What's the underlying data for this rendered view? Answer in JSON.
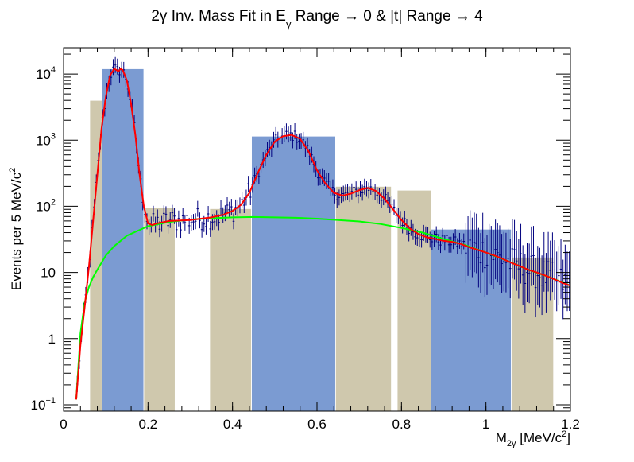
{
  "chart_data": {
    "type": "bar",
    "title_main": "2γ Inv. Mass Fit in E",
    "title_sub": "γ",
    "title_rest": " Range → 0 & |t| Range → 4",
    "ylabel": "Events per 5 MeV/c",
    "ylabel_sup": "2",
    "xlabel_main": "M",
    "xlabel_sub": "2γ",
    "xlabel_unit": " [MeV/c",
    "xlabel_sup": "2",
    "xlabel_close": "]",
    "xlim": [
      0,
      1.2
    ],
    "ylim": [
      0.08,
      25000
    ],
    "log_y": true,
    "x_ticks": [
      {
        "v": 0,
        "label": "0"
      },
      {
        "v": 0.2,
        "label": "0.2"
      },
      {
        "v": 0.4,
        "label": "0.4"
      },
      {
        "v": 0.6,
        "label": "0.6"
      },
      {
        "v": 0.8,
        "label": "0.8"
      },
      {
        "v": 1.0,
        "label": "1"
      },
      {
        "v": 1.2,
        "label": "1.2"
      }
    ],
    "y_ticks": [
      {
        "v": 0.1,
        "base": "10",
        "exp": "−1"
      },
      {
        "v": 1,
        "base": "1",
        "exp": ""
      },
      {
        "v": 10,
        "base": "10",
        "exp": ""
      },
      {
        "v": 100,
        "base": "10",
        "exp": "2"
      },
      {
        "v": 1000,
        "base": "10",
        "exp": "3"
      },
      {
        "v": 10000,
        "base": "10",
        "exp": "4"
      }
    ],
    "colors": {
      "signal_bar": "#7b9bd2",
      "sideband_bar": "#cfc8ad",
      "total_fit": "#ff0000",
      "background_fit": "#00ff00",
      "data_points": "#00007f"
    },
    "regions": [
      {
        "x0": 0.062,
        "x1": 0.091,
        "y": 4000,
        "kind": "sideband"
      },
      {
        "x0": 0.091,
        "x1": 0.19,
        "y": 12000,
        "kind": "signal"
      },
      {
        "x0": 0.19,
        "x1": 0.264,
        "y": 95,
        "kind": "sideband"
      },
      {
        "x0": 0.346,
        "x1": 0.445,
        "y": 92,
        "kind": "sideband"
      },
      {
        "x0": 0.445,
        "x1": 0.644,
        "y": 1150,
        "kind": "signal"
      },
      {
        "x0": 0.644,
        "x1": 0.776,
        "y": 200,
        "kind": "sideband"
      },
      {
        "x0": 0.79,
        "x1": 0.87,
        "y": 175,
        "kind": "sideband"
      },
      {
        "x0": 0.87,
        "x1": 1.06,
        "y": 45,
        "kind": "signal"
      },
      {
        "x0": 1.06,
        "x1": 1.16,
        "y": 17,
        "kind": "sideband"
      }
    ],
    "series": [
      {
        "role": "total_fit",
        "x": [
          0.03,
          0.04,
          0.05,
          0.06,
          0.07,
          0.08,
          0.09,
          0.1,
          0.11,
          0.12,
          0.13,
          0.135,
          0.14,
          0.15,
          0.16,
          0.17,
          0.18,
          0.19,
          0.2,
          0.21,
          0.22,
          0.25,
          0.3,
          0.35,
          0.38,
          0.4,
          0.42,
          0.44,
          0.46,
          0.48,
          0.5,
          0.52,
          0.54,
          0.56,
          0.58,
          0.6,
          0.62,
          0.64,
          0.66,
          0.68,
          0.7,
          0.72,
          0.74,
          0.76,
          0.78,
          0.8,
          0.82,
          0.84,
          0.86,
          0.88,
          0.9,
          0.92,
          0.94,
          0.96,
          0.98,
          1.0,
          1.02,
          1.04,
          1.06,
          1.08,
          1.1,
          1.12,
          1.14,
          1.16,
          1.18,
          1.2
        ],
        "y": [
          0.12,
          0.8,
          3,
          12,
          60,
          300,
          1500,
          4500,
          9500,
          12000,
          11000,
          12000,
          11500,
          8000,
          3500,
          1200,
          300,
          100,
          55,
          52,
          55,
          60,
          62,
          68,
          75,
          85,
          105,
          160,
          320,
          600,
          950,
          1150,
          1200,
          1050,
          680,
          350,
          220,
          160,
          145,
          155,
          175,
          190,
          170,
          130,
          90,
          62,
          46,
          38,
          34,
          32,
          30,
          29,
          27,
          24,
          22,
          20,
          18,
          16,
          14,
          12.5,
          11,
          10,
          9,
          8,
          7,
          6.3
        ]
      },
      {
        "role": "background_fit",
        "x": [
          0.03,
          0.04,
          0.05,
          0.06,
          0.07,
          0.08,
          0.1,
          0.12,
          0.15,
          0.2,
          0.25,
          0.3,
          0.35,
          0.4,
          0.45,
          0.5,
          0.55,
          0.6,
          0.65,
          0.7,
          0.75,
          0.8,
          0.85,
          0.9,
          0.95,
          1.0,
          1.05,
          1.1,
          1.15,
          1.2
        ],
        "y": [
          0.12,
          1.2,
          3.5,
          6,
          8.5,
          11,
          18,
          25,
          36,
          50,
          58,
          63,
          66,
          68,
          69,
          68,
          67,
          65,
          62,
          59,
          54,
          47,
          40,
          32,
          26,
          20,
          15,
          11,
          8.5,
          6.3
        ]
      }
    ]
  }
}
